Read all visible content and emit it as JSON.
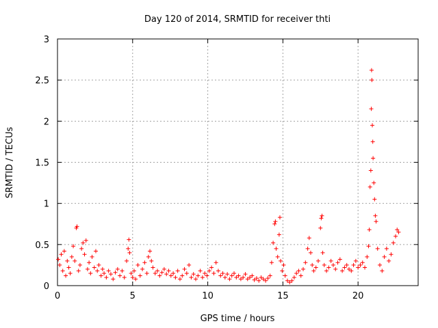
{
  "chart_data": {
    "type": "scatter",
    "title": "Day 120 of 2014, SRMTID for receiver thti",
    "xlabel": "GPS time / hours",
    "ylabel": "SRMTID / TECUs",
    "xlim": [
      0,
      24
    ],
    "ylim": [
      0,
      3
    ],
    "xticks": [
      0,
      5,
      10,
      15,
      20
    ],
    "yticks": [
      0,
      0.5,
      1,
      1.5,
      2,
      2.5,
      3
    ],
    "xtick_labels": [
      "0",
      "5",
      "10",
      "15",
      "20"
    ],
    "ytick_labels": [
      "0",
      "0.5",
      "1",
      "1.5",
      "2",
      "2.5",
      "3"
    ],
    "grid": true,
    "marker": "+",
    "color": "#ff0000",
    "series": [
      {
        "name": "SRMTID",
        "points": [
          [
            0.05,
            0.32
          ],
          [
            0.15,
            0.25
          ],
          [
            0.25,
            0.38
          ],
          [
            0.35,
            0.18
          ],
          [
            0.45,
            0.42
          ],
          [
            0.55,
            0.12
          ],
          [
            0.65,
            0.3
          ],
          [
            0.75,
            0.22
          ],
          [
            0.85,
            0.15
          ],
          [
            0.95,
            0.35
          ],
          [
            1.05,
            0.48
          ],
          [
            1.15,
            0.3
          ],
          [
            1.25,
            0.7
          ],
          [
            1.3,
            0.72
          ],
          [
            1.4,
            0.18
          ],
          [
            1.5,
            0.25
          ],
          [
            1.6,
            0.45
          ],
          [
            1.7,
            0.52
          ],
          [
            1.8,
            0.38
          ],
          [
            1.9,
            0.55
          ],
          [
            2.0,
            0.2
          ],
          [
            2.1,
            0.28
          ],
          [
            2.2,
            0.15
          ],
          [
            2.3,
            0.35
          ],
          [
            2.45,
            0.22
          ],
          [
            2.55,
            0.42
          ],
          [
            2.65,
            0.18
          ],
          [
            2.75,
            0.25
          ],
          [
            2.9,
            0.12
          ],
          [
            3.0,
            0.2
          ],
          [
            3.1,
            0.15
          ],
          [
            3.25,
            0.1
          ],
          [
            3.4,
            0.18
          ],
          [
            3.55,
            0.14
          ],
          [
            3.7,
            0.08
          ],
          [
            3.85,
            0.16
          ],
          [
            4.0,
            0.2
          ],
          [
            4.15,
            0.12
          ],
          [
            4.3,
            0.18
          ],
          [
            4.45,
            0.1
          ],
          [
            4.6,
            0.3
          ],
          [
            4.7,
            0.45
          ],
          [
            4.75,
            0.56
          ],
          [
            4.8,
            0.4
          ],
          [
            4.9,
            0.15
          ],
          [
            5.0,
            0.1
          ],
          [
            5.1,
            0.18
          ],
          [
            5.2,
            0.08
          ],
          [
            5.35,
            0.25
          ],
          [
            5.5,
            0.12
          ],
          [
            5.65,
            0.2
          ],
          [
            5.8,
            0.28
          ],
          [
            5.95,
            0.15
          ],
          [
            6.05,
            0.35
          ],
          [
            6.15,
            0.42
          ],
          [
            6.25,
            0.3
          ],
          [
            6.35,
            0.22
          ],
          [
            6.5,
            0.15
          ],
          [
            6.65,
            0.18
          ],
          [
            6.8,
            0.12
          ],
          [
            6.95,
            0.16
          ],
          [
            7.1,
            0.2
          ],
          [
            7.25,
            0.14
          ],
          [
            7.4,
            0.18
          ],
          [
            7.55,
            0.12
          ],
          [
            7.7,
            0.15
          ],
          [
            7.85,
            0.1
          ],
          [
            8.0,
            0.18
          ],
          [
            8.15,
            0.08
          ],
          [
            8.3,
            0.12
          ],
          [
            8.45,
            0.2
          ],
          [
            8.6,
            0.15
          ],
          [
            8.75,
            0.25
          ],
          [
            8.9,
            0.1
          ],
          [
            9.05,
            0.14
          ],
          [
            9.2,
            0.08
          ],
          [
            9.35,
            0.12
          ],
          [
            9.5,
            0.18
          ],
          [
            9.65,
            0.1
          ],
          [
            9.8,
            0.15
          ],
          [
            9.95,
            0.12
          ],
          [
            10.1,
            0.18
          ],
          [
            10.25,
            0.22
          ],
          [
            10.4,
            0.15
          ],
          [
            10.55,
            0.28
          ],
          [
            10.7,
            0.18
          ],
          [
            10.85,
            0.12
          ],
          [
            11.0,
            0.15
          ],
          [
            11.15,
            0.1
          ],
          [
            11.3,
            0.14
          ],
          [
            11.45,
            0.08
          ],
          [
            11.6,
            0.12
          ],
          [
            11.75,
            0.15
          ],
          [
            11.9,
            0.1
          ],
          [
            12.05,
            0.12
          ],
          [
            12.2,
            0.08
          ],
          [
            12.35,
            0.1
          ],
          [
            12.5,
            0.14
          ],
          [
            12.65,
            0.08
          ],
          [
            12.8,
            0.1
          ],
          [
            12.95,
            0.12
          ],
          [
            13.1,
            0.07
          ],
          [
            13.25,
            0.09
          ],
          [
            13.4,
            0.06
          ],
          [
            13.55,
            0.1
          ],
          [
            13.7,
            0.08
          ],
          [
            13.85,
            0.06
          ],
          [
            14.0,
            0.09
          ],
          [
            14.15,
            0.12
          ],
          [
            14.25,
            0.28
          ],
          [
            14.35,
            0.52
          ],
          [
            14.45,
            0.75
          ],
          [
            14.5,
            0.78
          ],
          [
            14.55,
            0.45
          ],
          [
            14.65,
            0.35
          ],
          [
            14.75,
            0.62
          ],
          [
            14.8,
            0.83
          ],
          [
            14.85,
            0.3
          ],
          [
            14.95,
            0.18
          ],
          [
            15.05,
            0.25
          ],
          [
            15.15,
            0.12
          ],
          [
            15.3,
            0.06
          ],
          [
            15.45,
            0.04
          ],
          [
            15.6,
            0.06
          ],
          [
            15.75,
            0.1
          ],
          [
            15.9,
            0.15
          ],
          [
            16.05,
            0.18
          ],
          [
            16.2,
            0.12
          ],
          [
            16.35,
            0.2
          ],
          [
            16.5,
            0.28
          ],
          [
            16.65,
            0.45
          ],
          [
            16.75,
            0.58
          ],
          [
            16.85,
            0.4
          ],
          [
            16.95,
            0.25
          ],
          [
            17.05,
            0.18
          ],
          [
            17.2,
            0.22
          ],
          [
            17.35,
            0.3
          ],
          [
            17.5,
            0.7
          ],
          [
            17.55,
            0.82
          ],
          [
            17.6,
            0.85
          ],
          [
            17.65,
            0.4
          ],
          [
            17.75,
            0.25
          ],
          [
            17.9,
            0.18
          ],
          [
            18.05,
            0.22
          ],
          [
            18.2,
            0.3
          ],
          [
            18.35,
            0.25
          ],
          [
            18.5,
            0.2
          ],
          [
            18.65,
            0.28
          ],
          [
            18.8,
            0.32
          ],
          [
            18.95,
            0.18
          ],
          [
            19.1,
            0.22
          ],
          [
            19.25,
            0.25
          ],
          [
            19.4,
            0.2
          ],
          [
            19.55,
            0.18
          ],
          [
            19.7,
            0.25
          ],
          [
            19.85,
            0.3
          ],
          [
            20.0,
            0.22
          ],
          [
            20.15,
            0.25
          ],
          [
            20.3,
            0.28
          ],
          [
            20.45,
            0.22
          ],
          [
            20.6,
            0.35
          ],
          [
            20.7,
            0.48
          ],
          [
            20.75,
            0.68
          ],
          [
            20.8,
            1.2
          ],
          [
            20.85,
            1.4
          ],
          [
            20.88,
            2.15
          ],
          [
            20.9,
            2.62
          ],
          [
            20.92,
            2.5
          ],
          [
            20.95,
            1.95
          ],
          [
            20.98,
            1.75
          ],
          [
            21.0,
            1.55
          ],
          [
            21.05,
            1.25
          ],
          [
            21.1,
            1.05
          ],
          [
            21.15,
            0.85
          ],
          [
            21.2,
            0.78
          ],
          [
            21.3,
            0.45
          ],
          [
            21.45,
            0.25
          ],
          [
            21.6,
            0.18
          ],
          [
            21.75,
            0.35
          ],
          [
            21.9,
            0.45
          ],
          [
            22.05,
            0.3
          ],
          [
            22.2,
            0.38
          ],
          [
            22.35,
            0.52
          ],
          [
            22.5,
            0.6
          ],
          [
            22.6,
            0.68
          ],
          [
            22.7,
            0.65
          ]
        ]
      }
    ]
  }
}
